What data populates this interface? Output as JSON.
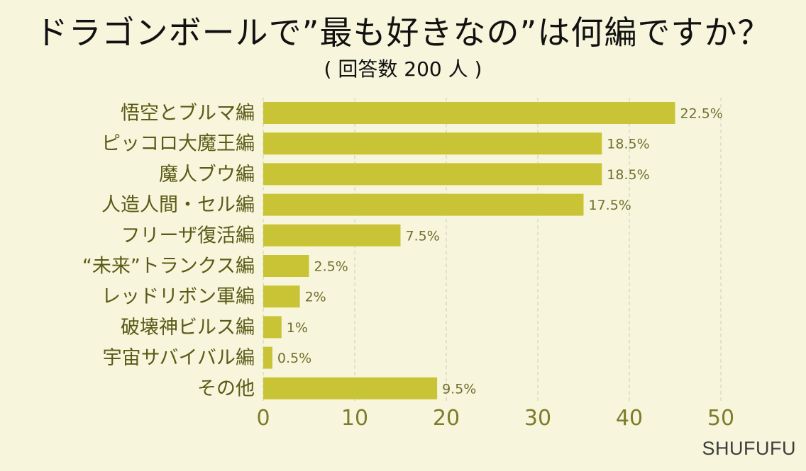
{
  "chart_data": {
    "type": "bar",
    "orientation": "horizontal",
    "title": "ドラゴンボールで”最も好きなの”は何編ですか？",
    "subtitle": "( 回答数 200 人 )",
    "categories": [
      "悟空とブルマ編",
      "ピッコロ大魔王編",
      "魔人ブウ編",
      "人造人間・セル編",
      "フリーザ復活編",
      "“未来”トランクス編",
      "レッドリボン軍編",
      "破壊神ビルス編",
      "宇宙サバイバル編",
      "その他"
    ],
    "values": [
      45,
      37,
      37,
      35,
      15,
      5,
      4,
      2,
      1,
      19
    ],
    "value_labels": [
      "22.5%",
      "18.5%",
      "18.5%",
      "17.5%",
      "7.5%",
      "2.5%",
      "2%",
      "1%",
      "0.5%",
      "9.5%"
    ],
    "xlim": [
      0,
      50
    ],
    "xticks": [
      "0",
      "10",
      "20",
      "30",
      "40",
      "50"
    ],
    "grid": "vertical-dashed",
    "xlabel": "",
    "ylabel": ""
  },
  "colors": {
    "background": "#f7f6dc",
    "bar": "#c9c435",
    "grid": "#d3d3c3"
  },
  "watermark": "SHUFUFU"
}
